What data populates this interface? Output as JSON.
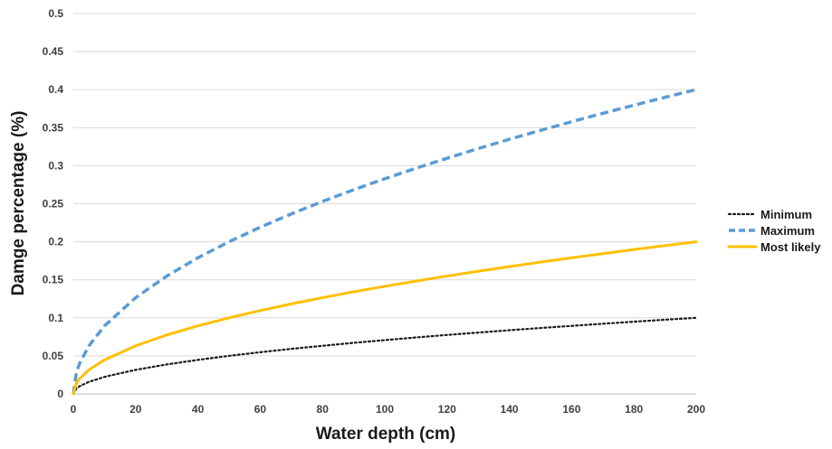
{
  "chart_data": {
    "type": "line",
    "xlabel": "Water depth (cm)",
    "ylabel": "Damge percentage (%)",
    "xlim": [
      0,
      200
    ],
    "ylim": [
      0,
      0.5
    ],
    "x_ticks": [
      "0",
      "20",
      "40",
      "60",
      "80",
      "100",
      "120",
      "140",
      "160",
      "180",
      "200"
    ],
    "y_ticks": [
      "0",
      "0.05",
      "0.1",
      "0.15",
      "0.2",
      "0.25",
      "0.3",
      "0.35",
      "0.4",
      "0.45",
      "0.5"
    ],
    "grid": "horizontal",
    "legend_position": "right",
    "x": [
      0,
      1,
      2,
      5,
      10,
      20,
      30,
      40,
      50,
      60,
      70,
      80,
      90,
      100,
      110,
      120,
      130,
      140,
      150,
      160,
      170,
      180,
      190,
      200
    ],
    "series": [
      {
        "name": "Minimum",
        "color": "#1a1a1a",
        "style": "dotted",
        "values": [
          0,
          0.0071,
          0.01,
          0.0158,
          0.0224,
          0.0316,
          0.0387,
          0.0447,
          0.05,
          0.0548,
          0.0592,
          0.0632,
          0.0671,
          0.0707,
          0.0742,
          0.0775,
          0.0806,
          0.0837,
          0.0866,
          0.0894,
          0.0922,
          0.0949,
          0.0975,
          0.1
        ]
      },
      {
        "name": "Maximum",
        "color": "#5b9bd5",
        "style": "dashed",
        "values": [
          0,
          0.0283,
          0.04,
          0.0632,
          0.0894,
          0.1265,
          0.1549,
          0.1789,
          0.2,
          0.2191,
          0.2366,
          0.253,
          0.2683,
          0.2828,
          0.2966,
          0.3098,
          0.3225,
          0.3347,
          0.3464,
          0.3578,
          0.3688,
          0.3795,
          0.3899,
          0.4
        ]
      },
      {
        "name": "Most likely",
        "color": "#ffc000",
        "style": "solid",
        "values": [
          0,
          0.0141,
          0.02,
          0.0316,
          0.0447,
          0.0632,
          0.0775,
          0.0894,
          0.1,
          0.1095,
          0.1183,
          0.1265,
          0.1342,
          0.1414,
          0.1483,
          0.1549,
          0.1612,
          0.1673,
          0.1732,
          0.1789,
          0.1844,
          0.1897,
          0.1949,
          0.2
        ]
      }
    ]
  }
}
